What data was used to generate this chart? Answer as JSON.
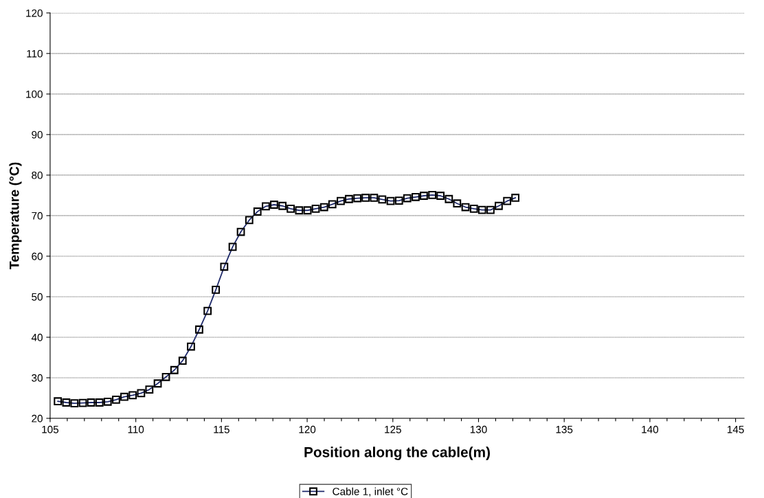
{
  "chart_data": {
    "type": "line",
    "xlabel": "Position along the cable(m)",
    "ylabel": "Temperature (°C)",
    "xlim": [
      105,
      145.5
    ],
    "ylim": [
      20,
      120
    ],
    "xticks": [
      105,
      {
        "value": 106,
        "label": null
      },
      {
        "value": 107,
        "label": null
      },
      {
        "value": 108,
        "label": null
      },
      {
        "value": 109,
        "label": null
      },
      110,
      {
        "value": 111,
        "label": null
      },
      {
        "value": 112,
        "label": null
      },
      {
        "value": 113,
        "label": null
      },
      {
        "value": 114,
        "label": null
      },
      115,
      {
        "value": 116,
        "label": null
      },
      {
        "value": 117,
        "label": null
      },
      {
        "value": 118,
        "label": null
      },
      {
        "value": 119,
        "label": null
      },
      120,
      {
        "value": 121,
        "label": null
      },
      {
        "value": 122,
        "label": null
      },
      {
        "value": 123,
        "label": null
      },
      {
        "value": 124,
        "label": null
      },
      125,
      {
        "value": 126,
        "label": null
      },
      {
        "value": 127,
        "label": null
      },
      {
        "value": 128,
        "label": null
      },
      {
        "value": 129,
        "label": null
      },
      130,
      {
        "value": 131,
        "label": null
      },
      {
        "value": 132,
        "label": null
      },
      {
        "value": 133,
        "label": null
      },
      {
        "value": 134,
        "label": null
      },
      135,
      {
        "value": 136,
        "label": null
      },
      {
        "value": 137,
        "label": null
      },
      {
        "value": 138,
        "label": null
      },
      {
        "value": 139,
        "label": null
      },
      140,
      {
        "value": 141,
        "label": null
      },
      {
        "value": 142,
        "label": null
      },
      {
        "value": 143,
        "label": null
      },
      {
        "value": 144,
        "label": null
      },
      145
    ],
    "yticks": [
      20,
      30,
      40,
      50,
      60,
      70,
      80,
      90,
      100,
      110,
      120
    ],
    "grid": "y",
    "legend": "bottom",
    "marker": "square",
    "line_style": "solid",
    "x": [
      105.45,
      105.94,
      106.42,
      106.91,
      107.39,
      107.88,
      108.36,
      108.85,
      109.33,
      109.82,
      110.31,
      110.79,
      111.28,
      111.76,
      112.25,
      112.73,
      113.22,
      113.7,
      114.19,
      114.67,
      115.16,
      115.65,
      116.13,
      116.62,
      117.1,
      117.59,
      118.07,
      118.56,
      119.04,
      119.53,
      120.02,
      120.5,
      120.99,
      121.47,
      121.96,
      122.44,
      122.93,
      123.41,
      123.9,
      124.38,
      124.87,
      125.36,
      125.84,
      126.33,
      126.81,
      127.3,
      127.78,
      128.27,
      128.75,
      129.24,
      129.73,
      130.21,
      130.7,
      131.18,
      131.67,
      132.15
    ],
    "series": [
      {
        "name": "Cable 1, inlet °C",
        "color": "#1f2a6b",
        "values": [
          24.2,
          23.9,
          23.7,
          23.8,
          23.9,
          23.9,
          24.1,
          24.6,
          25.3,
          25.7,
          26.2,
          27.1,
          28.6,
          30.2,
          31.9,
          34.2,
          37.7,
          41.9,
          46.5,
          51.7,
          57.4,
          62.3,
          66.0,
          68.9,
          71.0,
          72.3,
          72.7,
          72.4,
          71.7,
          71.3,
          71.3,
          71.7,
          72.1,
          72.8,
          73.6,
          74.1,
          74.3,
          74.4,
          74.4,
          74.0,
          73.6,
          73.7,
          74.3,
          74.6,
          74.9,
          75.1,
          74.9,
          74.1,
          73.0,
          72.1,
          71.7,
          71.4,
          71.4,
          72.4,
          73.6,
          74.4
        ]
      }
    ]
  }
}
